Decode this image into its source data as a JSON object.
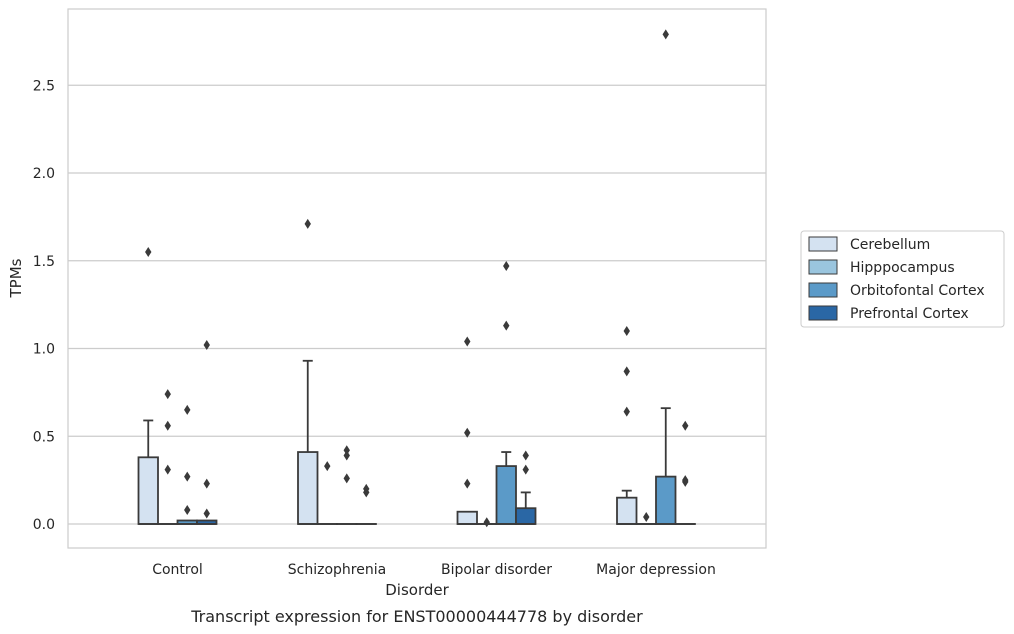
{
  "chart_data": {
    "type": "boxplot",
    "title": "",
    "caption": "Transcript expression for ENST00000444778 by disorder",
    "xlabel": "Disorder",
    "ylabel": "TPMs",
    "ylim": [
      -0.13,
      2.94
    ],
    "yticks": [
      0.0,
      0.5,
      1.0,
      1.5,
      2.0,
      2.5
    ],
    "ytick_labels": [
      "0.0",
      "0.5",
      "1.0",
      "1.5",
      "2.0",
      "2.5"
    ],
    "grid": "horizontal",
    "legend_position": "right",
    "categories": [
      "Control",
      "Schizophrenia",
      "Bipolar disorder",
      "Major depression"
    ],
    "series": [
      {
        "name": "Cerebellum",
        "color": "#d4e2f1",
        "boxes": [
          {
            "q1": 0.0,
            "median": 0.0,
            "q3": 0.38,
            "whisker_low": 0.0,
            "whisker_high": 0.59,
            "outliers": [
              1.55
            ]
          },
          {
            "q1": 0.0,
            "median": 0.0,
            "q3": 0.41,
            "whisker_low": 0.0,
            "whisker_high": 0.93,
            "outliers": [
              1.71
            ]
          },
          {
            "q1": 0.0,
            "median": 0.0,
            "q3": 0.07,
            "whisker_low": 0.0,
            "whisker_high": 0.07,
            "outliers": [
              0.23,
              0.52,
              1.04
            ]
          },
          {
            "q1": 0.0,
            "median": 0.0,
            "q3": 0.15,
            "whisker_low": 0.0,
            "whisker_high": 0.19,
            "outliers": [
              0.64,
              0.87,
              1.1
            ]
          }
        ]
      },
      {
        "name": "Hipppocampus",
        "color": "#9ac5de",
        "boxes": [
          {
            "q1": 0.0,
            "median": 0.0,
            "q3": 0.0,
            "whisker_low": 0.0,
            "whisker_high": 0.0,
            "outliers": [
              0.31,
              0.56,
              0.74
            ]
          },
          {
            "q1": 0.0,
            "median": 0.0,
            "q3": 0.0,
            "whisker_low": 0.0,
            "whisker_high": 0.0,
            "outliers": [
              0.33
            ]
          },
          {
            "q1": 0.0,
            "median": 0.0,
            "q3": 0.0,
            "whisker_low": 0.0,
            "whisker_high": 0.0,
            "outliers": [
              0.01
            ]
          },
          {
            "q1": 0.0,
            "median": 0.0,
            "q3": 0.0,
            "whisker_low": 0.0,
            "whisker_high": 0.0,
            "outliers": [
              0.04
            ]
          }
        ]
      },
      {
        "name": "Orbitofontal Cortex",
        "color": "#5b9ac8",
        "boxes": [
          {
            "q1": 0.0,
            "median": 0.0,
            "q3": 0.02,
            "whisker_low": 0.0,
            "whisker_high": 0.02,
            "outliers": [
              0.08,
              0.27,
              0.65
            ]
          },
          {
            "q1": 0.0,
            "median": 0.0,
            "q3": 0.0,
            "whisker_low": 0.0,
            "whisker_high": 0.0,
            "outliers": [
              0.26,
              0.39,
              0.42
            ]
          },
          {
            "q1": 0.0,
            "median": 0.0,
            "q3": 0.33,
            "whisker_low": 0.0,
            "whisker_high": 0.41,
            "outliers": [
              1.13,
              1.47
            ]
          },
          {
            "q1": 0.0,
            "median": 0.0,
            "q3": 0.27,
            "whisker_low": 0.0,
            "whisker_high": 0.66,
            "outliers": [
              2.79
            ]
          }
        ]
      },
      {
        "name": "Prefrontal Cortex",
        "color": "#2a67a5",
        "boxes": [
          {
            "q1": 0.0,
            "median": 0.0,
            "q3": 0.02,
            "whisker_low": 0.0,
            "whisker_high": 0.02,
            "outliers": [
              0.06,
              0.23,
              1.02
            ]
          },
          {
            "q1": 0.0,
            "median": 0.0,
            "q3": 0.0,
            "whisker_low": 0.0,
            "whisker_high": 0.0,
            "outliers": [
              0.18,
              0.2
            ]
          },
          {
            "q1": 0.0,
            "median": 0.0,
            "q3": 0.09,
            "whisker_low": 0.0,
            "whisker_high": 0.18,
            "outliers": [
              0.31,
              0.39
            ]
          },
          {
            "q1": 0.0,
            "median": 0.0,
            "q3": 0.0,
            "whisker_low": 0.0,
            "whisker_high": 0.0,
            "outliers": [
              0.24,
              0.25,
              0.56
            ]
          }
        ]
      }
    ]
  }
}
